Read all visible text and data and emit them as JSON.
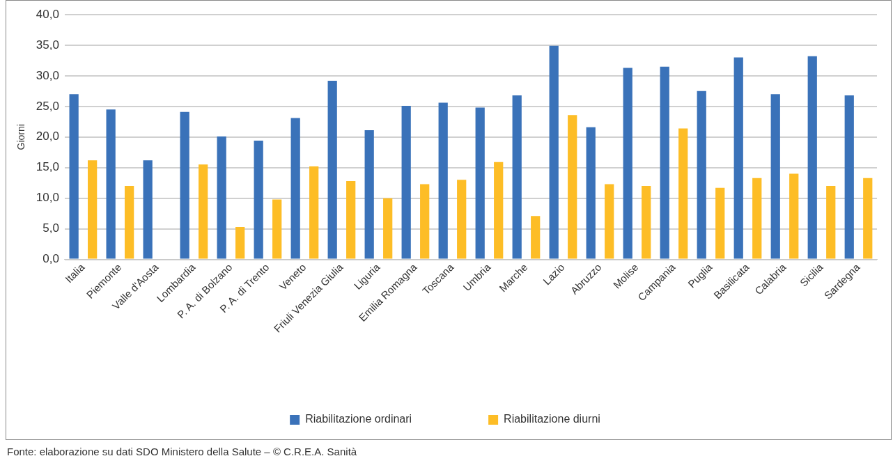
{
  "chart_data": {
    "type": "bar",
    "ylabel": "Giorni",
    "categories": [
      "Italia",
      "Piemonte",
      "Valle d'Aosta",
      "Lombardia",
      "P. A. di Bolzano",
      "P. A. di Trento",
      "Veneto",
      "Friuli Venezia Giulia",
      "Liguria",
      "Emilia Romagna",
      "Toscana",
      "Umbria",
      "Marche",
      "Lazio",
      "Abruzzo",
      "Molise",
      "Campania",
      "Puglia",
      "Basilicata",
      "Calabria",
      "Sicilia",
      "Sardegna"
    ],
    "series": [
      {
        "name": "Riabilitazione ordinari",
        "color": "#3a72b9",
        "values": [
          27.0,
          24.5,
          16.2,
          24.1,
          20.1,
          19.4,
          23.1,
          29.2,
          21.1,
          25.1,
          25.6,
          24.8,
          26.8,
          34.9,
          21.6,
          31.3,
          31.5,
          27.5,
          33.0,
          27.0,
          33.2,
          26.8
        ]
      },
      {
        "name": "Riabilitazione diurni",
        "color": "#fdbd26",
        "values": [
          16.2,
          12.0,
          null,
          15.5,
          5.3,
          9.8,
          15.2,
          12.8,
          10.0,
          12.3,
          13.0,
          15.9,
          7.1,
          23.6,
          12.3,
          12.0,
          21.4,
          11.7,
          13.3,
          14.0,
          12.0,
          13.3
        ]
      }
    ],
    "ylim": [
      0,
      40
    ],
    "yticks": [
      {
        "value": 0,
        "label": "0,0"
      },
      {
        "value": 5,
        "label": "5,0"
      },
      {
        "value": 10,
        "label": "10,0"
      },
      {
        "value": 15,
        "label": "15,0"
      },
      {
        "value": 20,
        "label": "20,0"
      },
      {
        "value": 25,
        "label": "25,0"
      },
      {
        "value": 30,
        "label": "30,0"
      },
      {
        "value": 35,
        "label": "35,0"
      },
      {
        "value": 40,
        "label": "40,0"
      }
    ],
    "grid": "y",
    "legend": "bottom",
    "annotations": [
      "Fonte: elaborazione su dati SDO Ministero della Salute – © C.R.E.A. Sanità"
    ]
  }
}
